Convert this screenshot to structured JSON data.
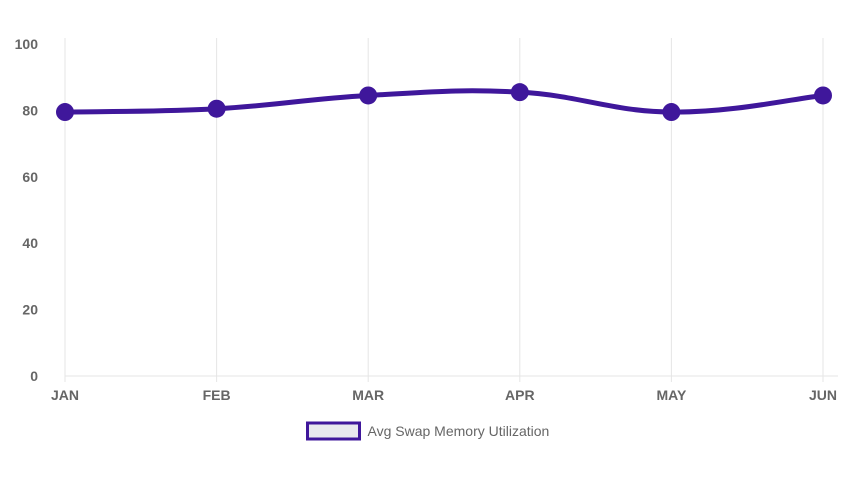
{
  "chart_data": {
    "type": "line",
    "categories": [
      "JAN",
      "FEB",
      "MAR",
      "APR",
      "MAY",
      "JUN"
    ],
    "series": [
      {
        "name": "Avg Swap Memory Utilization",
        "values": [
          79.5,
          80.5,
          84.5,
          85.5,
          79.5,
          84.5
        ],
        "color": "#3f179b",
        "legend_fill": "#e8e8ee"
      }
    ],
    "ylim": [
      0,
      100
    ],
    "yticks": [
      0,
      20,
      40,
      60,
      80,
      100
    ],
    "grid": "vertical",
    "legend_position": "bottom",
    "title": "",
    "xlabel": "",
    "ylabel": ""
  }
}
